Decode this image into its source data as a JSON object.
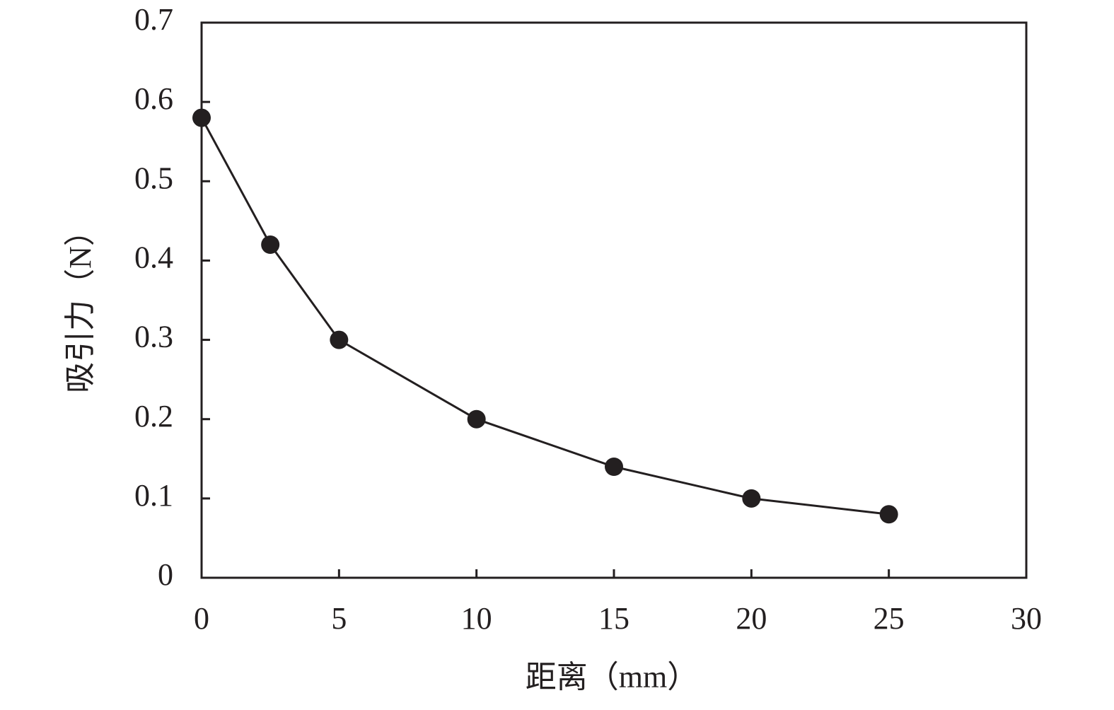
{
  "chart_data": {
    "type": "line",
    "x_label": "距离（mm）",
    "y_label": "吸引力（N）",
    "x": [
      0,
      2.5,
      5,
      10,
      15,
      20,
      25
    ],
    "values": [
      0.58,
      0.42,
      0.3,
      0.2,
      0.14,
      0.1,
      0.08
    ],
    "color": "#231f20",
    "xlim": [
      0,
      30
    ],
    "xticks": [
      0,
      5,
      10,
      15,
      20,
      25,
      30
    ],
    "ylim": [
      0,
      0.7
    ],
    "yticks": [
      0,
      0.1,
      0.2,
      0.3,
      0.4,
      0.5,
      0.6,
      0.7
    ],
    "grid": false
  }
}
